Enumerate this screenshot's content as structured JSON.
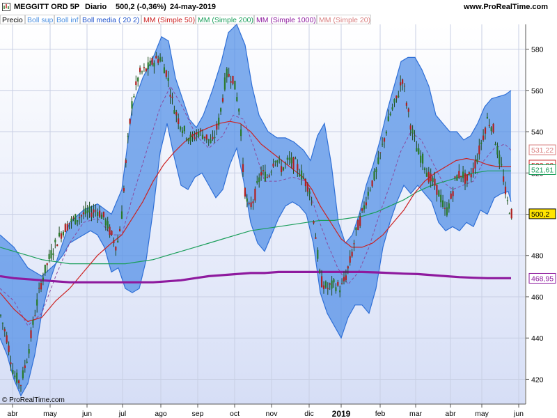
{
  "header": {
    "instrument": "MEGGITT ORD 5P",
    "timeframe": "Diario",
    "last": "500,2 (-0,36%)",
    "date": "24-may-2019",
    "site": "www.ProRealTime.com"
  },
  "indicators": [
    {
      "label": "Precio",
      "color": "#000000"
    },
    {
      "label": "Boll sup",
      "color": "#4a8fe0"
    },
    {
      "label": "Boll inf",
      "color": "#4a8fe0"
    },
    {
      "label": "Boll media ( 20 2)",
      "color": "#2255cc"
    },
    {
      "label": "MM (Simple 50)",
      "color": "#cc2222"
    },
    {
      "label": "MM (Simple 200)",
      "color": "#1a9e5a"
    },
    {
      "label": "MM (Simple 1000)",
      "color": "#8e1a9e"
    },
    {
      "label": "MM (Simple 20)",
      "color": "#d97f7f"
    }
  ],
  "watermark": "© ProRealTime.com",
  "chart_data": {
    "type": "line",
    "y_ticks": [
      420,
      440,
      460,
      480,
      500,
      520,
      540,
      560,
      580
    ],
    "ylim": [
      408,
      592
    ],
    "x_labels": [
      "abr",
      "may",
      "jun",
      "jul",
      "ago",
      "sep",
      "oct",
      "nov",
      "dic",
      "2019",
      "feb",
      "mar",
      "abr",
      "may",
      "jun"
    ],
    "last_values": [
      {
        "label": "531,22",
        "value": 531.22,
        "color": "#d97f7f"
      },
      {
        "label": "523,82",
        "value": 523.82,
        "color": "#cc2222"
      },
      {
        "label": "521,61",
        "value": 521.61,
        "color": "#1a9e5a"
      },
      {
        "label": "500,2",
        "value": 500.2,
        "color": "#000000",
        "bg": "#ffe400"
      },
      {
        "label": "468,95",
        "value": 468.95,
        "color": "#8e1a9e"
      }
    ],
    "price_points": [
      [
        0,
        452
      ],
      [
        10,
        440
      ],
      [
        20,
        422
      ],
      [
        30,
        418
      ],
      [
        40,
        432
      ],
      [
        50,
        452
      ],
      [
        60,
        468
      ],
      [
        70,
        478
      ],
      [
        80,
        486
      ],
      [
        90,
        492
      ],
      [
        100,
        496
      ],
      [
        110,
        498
      ],
      [
        120,
        500
      ],
      [
        130,
        501
      ],
      [
        140,
        502
      ],
      [
        150,
        498
      ],
      [
        160,
        490
      ],
      [
        168,
        484
      ],
      [
        175,
        500
      ],
      [
        182,
        530
      ],
      [
        190,
        555
      ],
      [
        200,
        568
      ],
      [
        210,
        570
      ],
      [
        220,
        574
      ],
      [
        230,
        576
      ],
      [
        240,
        568
      ],
      [
        248,
        554
      ],
      [
        256,
        546
      ],
      [
        265,
        540
      ],
      [
        275,
        536
      ],
      [
        285,
        540
      ],
      [
        295,
        538
      ],
      [
        305,
        534
      ],
      [
        315,
        546
      ],
      [
        325,
        568
      ],
      [
        335,
        566
      ],
      [
        345,
        548
      ],
      [
        350,
        515
      ],
      [
        357,
        502
      ],
      [
        365,
        508
      ],
      [
        375,
        520
      ],
      [
        385,
        518
      ],
      [
        395,
        528
      ],
      [
        405,
        522
      ],
      [
        415,
        526
      ],
      [
        425,
        524
      ],
      [
        435,
        518
      ],
      [
        445,
        512
      ],
      [
        452,
        494
      ],
      [
        460,
        468
      ],
      [
        470,
        464
      ],
      [
        480,
        466
      ],
      [
        490,
        464
      ],
      [
        497,
        470
      ],
      [
        505,
        480
      ],
      [
        512,
        492
      ],
      [
        520,
        500
      ],
      [
        530,
        512
      ],
      [
        540,
        520
      ],
      [
        550,
        534
      ],
      [
        560,
        548
      ],
      [
        570,
        556
      ],
      [
        578,
        566
      ],
      [
        585,
        552
      ],
      [
        592,
        540
      ],
      [
        600,
        530
      ],
      [
        608,
        526
      ],
      [
        616,
        518
      ],
      [
        625,
        514
      ],
      [
        633,
        508
      ],
      [
        640,
        500
      ],
      [
        648,
        508
      ],
      [
        655,
        518
      ],
      [
        663,
        520
      ],
      [
        670,
        516
      ],
      [
        678,
        520
      ],
      [
        686,
        528
      ],
      [
        694,
        538
      ],
      [
        700,
        546
      ],
      [
        708,
        542
      ],
      [
        716,
        528
      ],
      [
        722,
        520
      ],
      [
        728,
        506
      ],
      [
        735,
        500
      ]
    ],
    "boll_upper": [
      [
        0,
        490
      ],
      [
        20,
        484
      ],
      [
        40,
        474
      ],
      [
        60,
        470
      ],
      [
        80,
        476
      ],
      [
        100,
        496
      ],
      [
        120,
        502
      ],
      [
        140,
        505
      ],
      [
        160,
        500
      ],
      [
        175,
        512
      ],
      [
        190,
        552
      ],
      [
        205,
        566
      ],
      [
        220,
        576
      ],
      [
        232,
        586
      ],
      [
        242,
        584
      ],
      [
        252,
        566
      ],
      [
        262,
        556
      ],
      [
        272,
        546
      ],
      [
        282,
        542
      ],
      [
        292,
        548
      ],
      [
        305,
        560
      ],
      [
        318,
        574
      ],
      [
        328,
        588
      ],
      [
        340,
        592
      ],
      [
        352,
        582
      ],
      [
        362,
        562
      ],
      [
        372,
        548
      ],
      [
        385,
        540
      ],
      [
        398,
        537
      ],
      [
        410,
        537
      ],
      [
        422,
        535
      ],
      [
        436,
        531
      ],
      [
        446,
        526
      ],
      [
        456,
        538
      ],
      [
        466,
        544
      ],
      [
        476,
        524
      ],
      [
        486,
        496
      ],
      [
        496,
        486
      ],
      [
        506,
        490
      ],
      [
        516,
        500
      ],
      [
        526,
        514
      ],
      [
        536,
        524
      ],
      [
        546,
        536
      ],
      [
        556,
        550
      ],
      [
        566,
        562
      ],
      [
        576,
        574
      ],
      [
        586,
        576
      ],
      [
        596,
        576
      ],
      [
        606,
        570
      ],
      [
        616,
        562
      ],
      [
        626,
        548
      ],
      [
        636,
        544
      ],
      [
        646,
        540
      ],
      [
        656,
        540
      ],
      [
        666,
        536
      ],
      [
        676,
        538
      ],
      [
        686,
        544
      ],
      [
        696,
        552
      ],
      [
        706,
        556
      ],
      [
        716,
        557
      ],
      [
        726,
        558
      ],
      [
        734,
        560
      ]
    ],
    "boll_lower": [
      [
        0,
        440
      ],
      [
        10,
        432
      ],
      [
        20,
        420
      ],
      [
        30,
        412
      ],
      [
        40,
        418
      ],
      [
        50,
        432
      ],
      [
        60,
        452
      ],
      [
        70,
        466
      ],
      [
        80,
        476
      ],
      [
        90,
        480
      ],
      [
        100,
        486
      ],
      [
        110,
        488
      ],
      [
        120,
        490
      ],
      [
        130,
        492
      ],
      [
        140,
        490
      ],
      [
        150,
        484
      ],
      [
        160,
        472
      ],
      [
        170,
        474
      ],
      [
        180,
        464
      ],
      [
        190,
        462
      ],
      [
        200,
        464
      ],
      [
        210,
        478
      ],
      [
        220,
        502
      ],
      [
        230,
        530
      ],
      [
        240,
        544
      ],
      [
        250,
        528
      ],
      [
        260,
        514
      ],
      [
        270,
        512
      ],
      [
        280,
        518
      ],
      [
        290,
        520
      ],
      [
        300,
        514
      ],
      [
        310,
        508
      ],
      [
        320,
        512
      ],
      [
        330,
        524
      ],
      [
        340,
        532
      ],
      [
        350,
        516
      ],
      [
        360,
        496
      ],
      [
        370,
        486
      ],
      [
        380,
        482
      ],
      [
        390,
        490
      ],
      [
        400,
        498
      ],
      [
        410,
        504
      ],
      [
        420,
        506
      ],
      [
        430,
        504
      ],
      [
        440,
        500
      ],
      [
        450,
        486
      ],
      [
        460,
        462
      ],
      [
        470,
        452
      ],
      [
        480,
        446
      ],
      [
        490,
        440
      ],
      [
        500,
        450
      ],
      [
        510,
        456
      ],
      [
        520,
        456
      ],
      [
        530,
        452
      ],
      [
        540,
        464
      ],
      [
        550,
        484
      ],
      [
        560,
        496
      ],
      [
        570,
        506
      ],
      [
        580,
        514
      ],
      [
        590,
        510
      ],
      [
        600,
        514
      ],
      [
        610,
        510
      ],
      [
        620,
        506
      ],
      [
        630,
        496
      ],
      [
        640,
        492
      ],
      [
        650,
        494
      ],
      [
        660,
        492
      ],
      [
        670,
        496
      ],
      [
        680,
        494
      ],
      [
        690,
        502
      ],
      [
        700,
        500
      ],
      [
        710,
        508
      ],
      [
        720,
        510
      ],
      [
        730,
        511
      ],
      [
        734,
        506
      ]
    ],
    "boll_mid": [
      [
        0,
        464
      ],
      [
        20,
        458
      ],
      [
        40,
        446
      ],
      [
        60,
        452
      ],
      [
        80,
        470
      ],
      [
        100,
        486
      ],
      [
        120,
        496
      ],
      [
        140,
        498
      ],
      [
        160,
        490
      ],
      [
        175,
        490
      ],
      [
        190,
        508
      ],
      [
        210,
        530
      ],
      [
        230,
        552
      ],
      [
        245,
        562
      ],
      [
        262,
        552
      ],
      [
        282,
        538
      ],
      [
        300,
        532
      ],
      [
        320,
        538
      ],
      [
        335,
        548
      ],
      [
        350,
        546
      ],
      [
        365,
        532
      ],
      [
        380,
        516
      ],
      [
        400,
        516
      ],
      [
        420,
        518
      ],
      [
        440,
        516
      ],
      [
        455,
        500
      ],
      [
        470,
        486
      ],
      [
        485,
        474
      ],
      [
        500,
        466
      ],
      [
        515,
        472
      ],
      [
        530,
        484
      ],
      [
        545,
        500
      ],
      [
        560,
        514
      ],
      [
        575,
        530
      ],
      [
        590,
        540
      ],
      [
        605,
        536
      ],
      [
        620,
        526
      ],
      [
        635,
        516
      ],
      [
        650,
        512
      ],
      [
        665,
        514
      ],
      [
        680,
        516
      ],
      [
        695,
        526
      ],
      [
        710,
        532
      ],
      [
        725,
        534
      ],
      [
        734,
        531
      ]
    ],
    "sma50": [
      [
        0,
        462
      ],
      [
        20,
        454
      ],
      [
        40,
        448
      ],
      [
        60,
        450
      ],
      [
        80,
        458
      ],
      [
        100,
        464
      ],
      [
        120,
        472
      ],
      [
        140,
        480
      ],
      [
        160,
        486
      ],
      [
        175,
        490
      ],
      [
        190,
        498
      ],
      [
        205,
        506
      ],
      [
        220,
        516
      ],
      [
        235,
        524
      ],
      [
        250,
        530
      ],
      [
        265,
        535
      ],
      [
        280,
        539
      ],
      [
        300,
        542
      ],
      [
        315,
        544
      ],
      [
        330,
        545
      ],
      [
        345,
        544
      ],
      [
        360,
        540
      ],
      [
        375,
        534
      ],
      [
        390,
        530
      ],
      [
        405,
        526
      ],
      [
        420,
        522
      ],
      [
        435,
        518
      ],
      [
        448,
        512
      ],
      [
        460,
        504
      ],
      [
        475,
        496
      ],
      [
        490,
        488
      ],
      [
        505,
        484
      ],
      [
        520,
        484
      ],
      [
        535,
        486
      ],
      [
        550,
        490
      ],
      [
        565,
        496
      ],
      [
        580,
        502
      ],
      [
        595,
        510
      ],
      [
        610,
        516
      ],
      [
        625,
        520
      ],
      [
        640,
        523
      ],
      [
        655,
        526
      ],
      [
        670,
        527
      ],
      [
        685,
        526
      ],
      [
        700,
        524
      ],
      [
        715,
        523
      ],
      [
        734,
        523
      ]
    ],
    "sma200": [
      [
        0,
        484
      ],
      [
        20,
        482
      ],
      [
        40,
        480
      ],
      [
        60,
        478
      ],
      [
        80,
        477
      ],
      [
        100,
        476
      ],
      [
        120,
        476
      ],
      [
        140,
        476
      ],
      [
        160,
        476
      ],
      [
        180,
        476
      ],
      [
        200,
        477
      ],
      [
        220,
        478
      ],
      [
        240,
        480
      ],
      [
        260,
        482
      ],
      [
        280,
        484
      ],
      [
        300,
        486
      ],
      [
        320,
        488
      ],
      [
        340,
        490
      ],
      [
        360,
        492
      ],
      [
        380,
        493
      ],
      [
        400,
        494
      ],
      [
        420,
        495
      ],
      [
        440,
        496
      ],
      [
        460,
        497
      ],
      [
        480,
        497
      ],
      [
        500,
        498
      ],
      [
        520,
        499
      ],
      [
        540,
        501
      ],
      [
        560,
        504
      ],
      [
        580,
        507
      ],
      [
        600,
        511
      ],
      [
        620,
        514
      ],
      [
        640,
        516
      ],
      [
        660,
        518
      ],
      [
        680,
        520
      ],
      [
        700,
        521
      ],
      [
        720,
        521
      ],
      [
        734,
        521
      ]
    ],
    "sma1000": [
      [
        0,
        470
      ],
      [
        20,
        469
      ],
      [
        40,
        468.5
      ],
      [
        60,
        468
      ],
      [
        80,
        467.5
      ],
      [
        100,
        467
      ],
      [
        120,
        467
      ],
      [
        140,
        467
      ],
      [
        160,
        467
      ],
      [
        180,
        467
      ],
      [
        200,
        467
      ],
      [
        220,
        467
      ],
      [
        240,
        467.5
      ],
      [
        260,
        468
      ],
      [
        280,
        469
      ],
      [
        300,
        470
      ],
      [
        320,
        470.5
      ],
      [
        340,
        471
      ],
      [
        360,
        471.5
      ],
      [
        380,
        471.5
      ],
      [
        400,
        472
      ],
      [
        420,
        472
      ],
      [
        440,
        472
      ],
      [
        460,
        472
      ],
      [
        480,
        472
      ],
      [
        500,
        472
      ],
      [
        520,
        472
      ],
      [
        540,
        471.8
      ],
      [
        560,
        471.5
      ],
      [
        580,
        471.2
      ],
      [
        600,
        471
      ],
      [
        620,
        470.5
      ],
      [
        640,
        470
      ],
      [
        660,
        469.5
      ],
      [
        680,
        469.2
      ],
      [
        700,
        469
      ],
      [
        720,
        469
      ],
      [
        734,
        469
      ]
    ]
  }
}
